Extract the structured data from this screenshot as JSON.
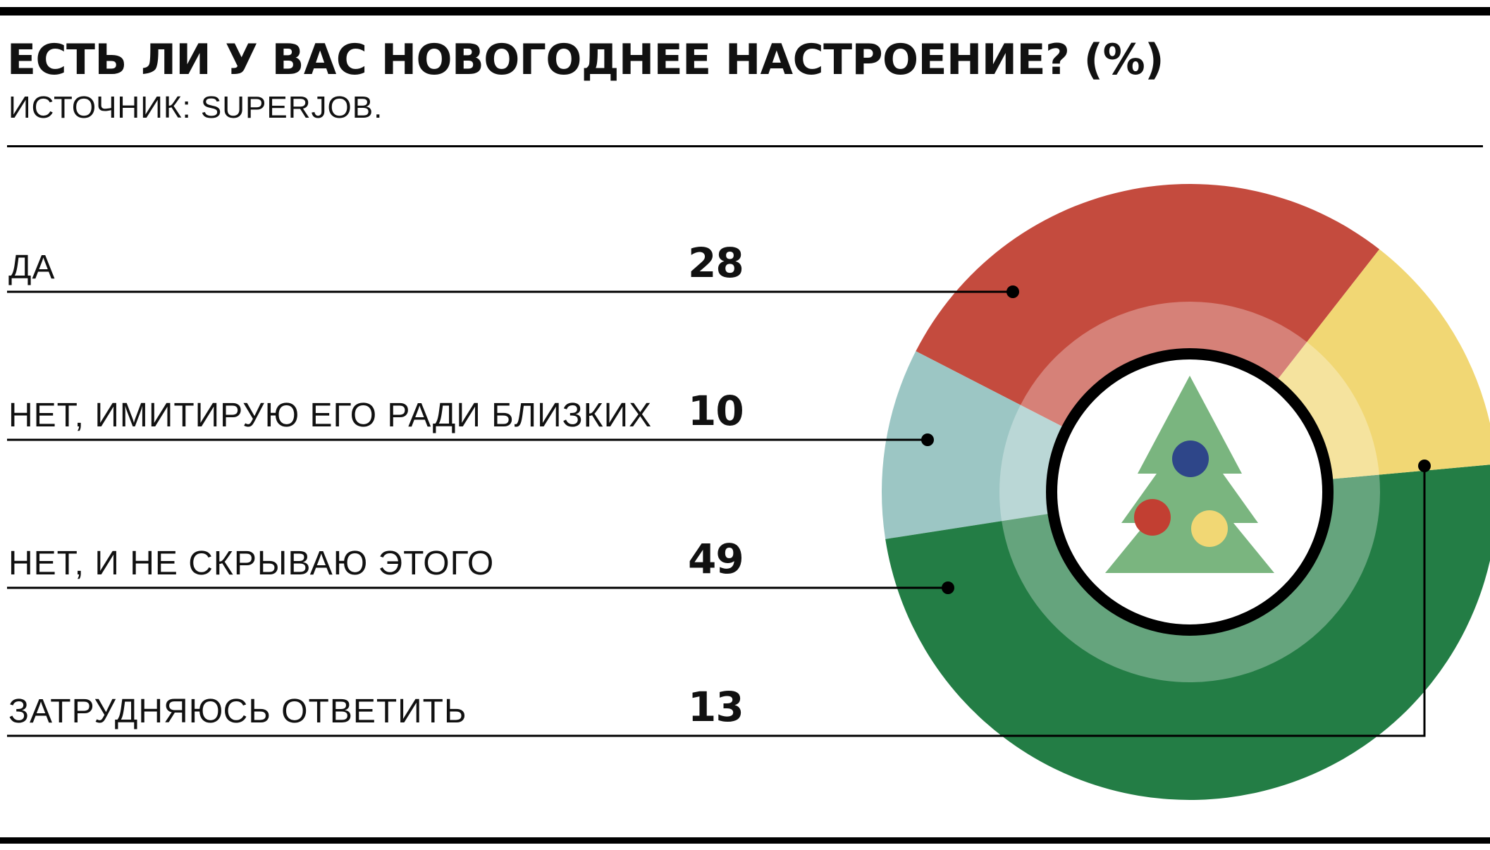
{
  "title": "ЕСТЬ ЛИ У ВАС НОВОГОДНЕЕ НАСТРОЕНИЕ? (%)",
  "source": "ИСТОЧНИК: SUPERJOB.",
  "colors": {
    "yes": "#c44b3e",
    "imitate": "#9cc6c4",
    "no": "#237d45",
    "unsure": "#f1d774",
    "tree": "#7ab57f",
    "ornament_blue": "#2e4689",
    "ornament_red": "#c23f32",
    "ornament_yellow": "#f1d774"
  },
  "center_icon": "christmas-tree-icon",
  "chart_data": {
    "type": "pie",
    "categories": [
      "ДА",
      "НЕТ, ИМИТИРУЮ ЕГО РАДИ БЛИЗКИХ",
      "НЕТ, И НЕ СКРЫВАЮ ЭТОГО",
      "ЗАТРУДНЯЮСЬ ОТВЕТИТЬ"
    ],
    "values": [
      28,
      10,
      49,
      13
    ],
    "value_labels": [
      "28",
      "10",
      "49",
      "13"
    ],
    "unit": "%"
  }
}
